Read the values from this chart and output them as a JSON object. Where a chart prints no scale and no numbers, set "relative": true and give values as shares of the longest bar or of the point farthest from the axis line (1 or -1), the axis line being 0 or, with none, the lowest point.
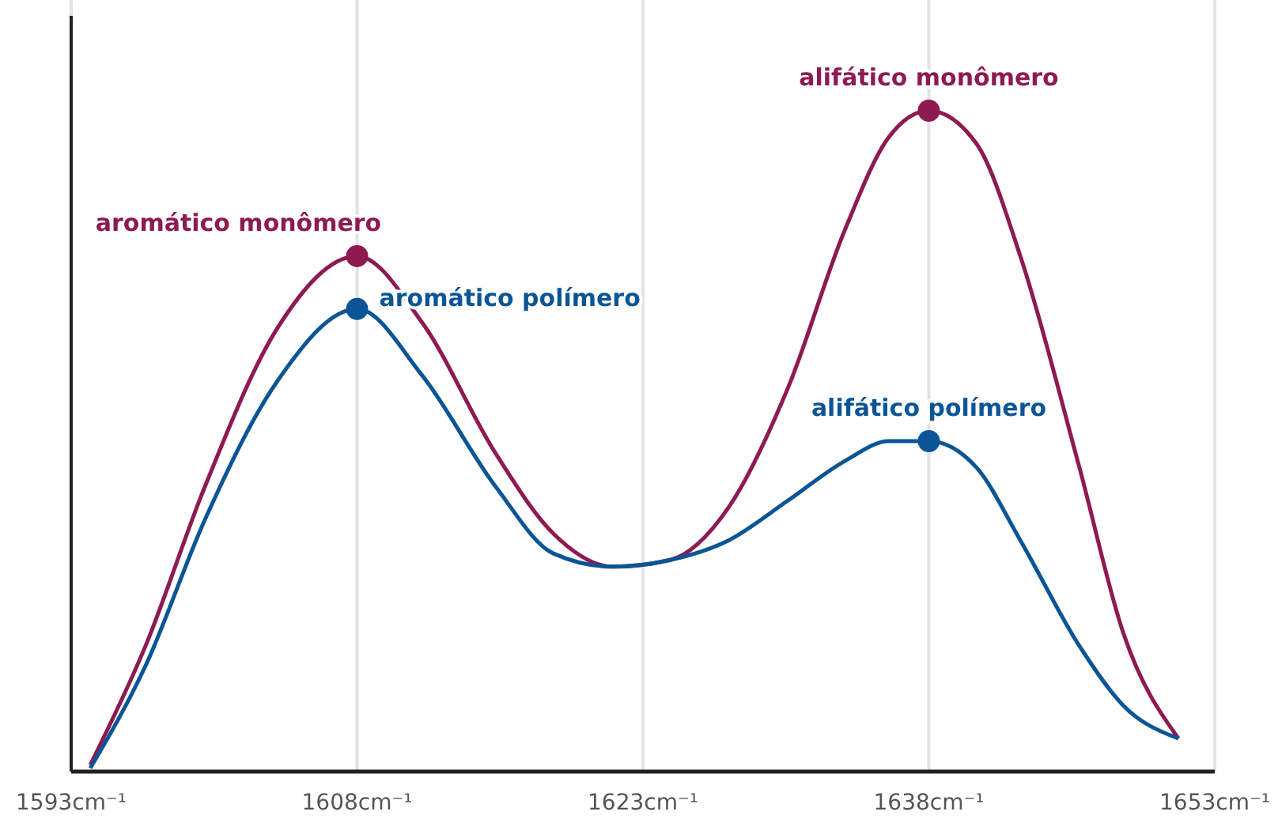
{
  "chart_data": {
    "type": "line",
    "relative": true,
    "grid": "x",
    "marker": "none",
    "line_style": "solid",
    "xlim": [
      1593,
      1653
    ],
    "xticks": [
      {
        "value": 1593,
        "label": "1593cm⁻¹"
      },
      {
        "value": 1608,
        "label": "1608cm⁻¹"
      },
      {
        "value": 1623,
        "label": "1623cm⁻¹"
      },
      {
        "value": 1638,
        "label": "1638cm⁻¹"
      },
      {
        "value": 1653,
        "label": "1653cm⁻¹"
      }
    ],
    "series": [
      {
        "color": "#8e1a52",
        "x": [
          1594.0,
          1596.9,
          1600.0,
          1603.8,
          1608.0,
          1611.4,
          1615.3,
          1618.3,
          1621.4,
          1624.4,
          1627.5,
          1630.6,
          1633.6,
          1635.9,
          1638.0,
          1640.5,
          1642.8,
          1645.9,
          1648.2,
          1651.1
        ],
        "values": [
          0.01,
          0.19,
          0.43,
          0.67,
          0.78,
          0.68,
          0.48,
          0.36,
          0.31,
          0.32,
          0.4,
          0.58,
          0.82,
          0.96,
          1,
          0.95,
          0.78,
          0.46,
          0.21,
          0.05
        ]
      },
      {
        "color": "#0b5596",
        "x": [
          1594.0,
          1596.9,
          1600.0,
          1603.8,
          1608.0,
          1611.4,
          1615.3,
          1618.3,
          1621.4,
          1624.4,
          1627.5,
          1630.6,
          1633.6,
          1635.9,
          1638.0,
          1640.5,
          1642.8,
          1645.9,
          1648.2,
          1651.1
        ],
        "values": [
          0.005,
          0.16,
          0.38,
          0.59,
          0.7,
          0.6,
          0.43,
          0.33,
          0.31,
          0.32,
          0.35,
          0.41,
          0.47,
          0.5,
          0.5,
          0.46,
          0.35,
          0.19,
          0.1,
          0.05
        ]
      },
      {
        "type": "scatter",
        "marker": "circle",
        "name": "aromático monômero",
        "color": "#8e1a52",
        "x": [
          1608
        ],
        "values": [
          0.78
        ]
      },
      {
        "type": "scatter",
        "marker": "circle",
        "name": "aromático polímero",
        "color": "#0b5596",
        "x": [
          1608
        ],
        "values": [
          0.7
        ]
      },
      {
        "type": "scatter",
        "marker": "circle",
        "name": "alifático monômero",
        "color": "#8e1a52",
        "x": [
          1638
        ],
        "values": [
          1
        ]
      },
      {
        "type": "scatter",
        "marker": "circle",
        "name": "alifático polímero",
        "color": "#0b5596",
        "x": [
          1638
        ],
        "values": [
          0.5
        ]
      }
    ]
  }
}
